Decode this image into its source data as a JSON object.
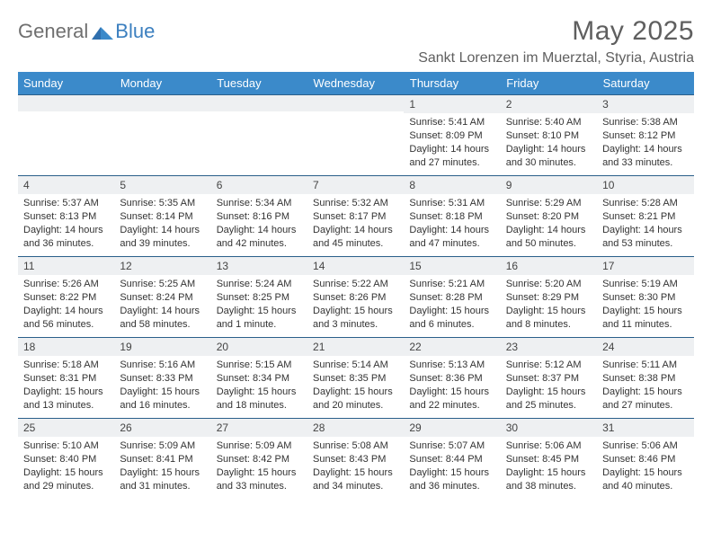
{
  "brand": {
    "part1": "General",
    "part2": "Blue"
  },
  "title": "May 2025",
  "location": "Sankt Lorenzen im Muerztal, Styria, Austria",
  "colors": {
    "header_bg": "#3b8aca",
    "header_text": "#ffffff",
    "band_bg": "#eef0f2",
    "band_border": "#2a5f8a",
    "body_text": "#333333",
    "title_text": "#5f5f5f",
    "logo_gray": "#6f6f6f",
    "logo_blue": "#3b7fbf",
    "page_bg": "#ffffff"
  },
  "typography": {
    "title_fontsize": 30,
    "location_fontsize": 16,
    "header_fontsize": 13,
    "daynum_fontsize": 12,
    "cell_fontsize": 11,
    "logo_fontsize": 22
  },
  "calendar": {
    "columns": [
      "Sunday",
      "Monday",
      "Tuesday",
      "Wednesday",
      "Thursday",
      "Friday",
      "Saturday"
    ],
    "weeks": [
      [
        null,
        null,
        null,
        null,
        {
          "day": "1",
          "sunrise": "Sunrise: 5:41 AM",
          "sunset": "Sunset: 8:09 PM",
          "daylight": "Daylight: 14 hours and 27 minutes."
        },
        {
          "day": "2",
          "sunrise": "Sunrise: 5:40 AM",
          "sunset": "Sunset: 8:10 PM",
          "daylight": "Daylight: 14 hours and 30 minutes."
        },
        {
          "day": "3",
          "sunrise": "Sunrise: 5:38 AM",
          "sunset": "Sunset: 8:12 PM",
          "daylight": "Daylight: 14 hours and 33 minutes."
        }
      ],
      [
        {
          "day": "4",
          "sunrise": "Sunrise: 5:37 AM",
          "sunset": "Sunset: 8:13 PM",
          "daylight": "Daylight: 14 hours and 36 minutes."
        },
        {
          "day": "5",
          "sunrise": "Sunrise: 5:35 AM",
          "sunset": "Sunset: 8:14 PM",
          "daylight": "Daylight: 14 hours and 39 minutes."
        },
        {
          "day": "6",
          "sunrise": "Sunrise: 5:34 AM",
          "sunset": "Sunset: 8:16 PM",
          "daylight": "Daylight: 14 hours and 42 minutes."
        },
        {
          "day": "7",
          "sunrise": "Sunrise: 5:32 AM",
          "sunset": "Sunset: 8:17 PM",
          "daylight": "Daylight: 14 hours and 45 minutes."
        },
        {
          "day": "8",
          "sunrise": "Sunrise: 5:31 AM",
          "sunset": "Sunset: 8:18 PM",
          "daylight": "Daylight: 14 hours and 47 minutes."
        },
        {
          "day": "9",
          "sunrise": "Sunrise: 5:29 AM",
          "sunset": "Sunset: 8:20 PM",
          "daylight": "Daylight: 14 hours and 50 minutes."
        },
        {
          "day": "10",
          "sunrise": "Sunrise: 5:28 AM",
          "sunset": "Sunset: 8:21 PM",
          "daylight": "Daylight: 14 hours and 53 minutes."
        }
      ],
      [
        {
          "day": "11",
          "sunrise": "Sunrise: 5:26 AM",
          "sunset": "Sunset: 8:22 PM",
          "daylight": "Daylight: 14 hours and 56 minutes."
        },
        {
          "day": "12",
          "sunrise": "Sunrise: 5:25 AM",
          "sunset": "Sunset: 8:24 PM",
          "daylight": "Daylight: 14 hours and 58 minutes."
        },
        {
          "day": "13",
          "sunrise": "Sunrise: 5:24 AM",
          "sunset": "Sunset: 8:25 PM",
          "daylight": "Daylight: 15 hours and 1 minute."
        },
        {
          "day": "14",
          "sunrise": "Sunrise: 5:22 AM",
          "sunset": "Sunset: 8:26 PM",
          "daylight": "Daylight: 15 hours and 3 minutes."
        },
        {
          "day": "15",
          "sunrise": "Sunrise: 5:21 AM",
          "sunset": "Sunset: 8:28 PM",
          "daylight": "Daylight: 15 hours and 6 minutes."
        },
        {
          "day": "16",
          "sunrise": "Sunrise: 5:20 AM",
          "sunset": "Sunset: 8:29 PM",
          "daylight": "Daylight: 15 hours and 8 minutes."
        },
        {
          "day": "17",
          "sunrise": "Sunrise: 5:19 AM",
          "sunset": "Sunset: 8:30 PM",
          "daylight": "Daylight: 15 hours and 11 minutes."
        }
      ],
      [
        {
          "day": "18",
          "sunrise": "Sunrise: 5:18 AM",
          "sunset": "Sunset: 8:31 PM",
          "daylight": "Daylight: 15 hours and 13 minutes."
        },
        {
          "day": "19",
          "sunrise": "Sunrise: 5:16 AM",
          "sunset": "Sunset: 8:33 PM",
          "daylight": "Daylight: 15 hours and 16 minutes."
        },
        {
          "day": "20",
          "sunrise": "Sunrise: 5:15 AM",
          "sunset": "Sunset: 8:34 PM",
          "daylight": "Daylight: 15 hours and 18 minutes."
        },
        {
          "day": "21",
          "sunrise": "Sunrise: 5:14 AM",
          "sunset": "Sunset: 8:35 PM",
          "daylight": "Daylight: 15 hours and 20 minutes."
        },
        {
          "day": "22",
          "sunrise": "Sunrise: 5:13 AM",
          "sunset": "Sunset: 8:36 PM",
          "daylight": "Daylight: 15 hours and 22 minutes."
        },
        {
          "day": "23",
          "sunrise": "Sunrise: 5:12 AM",
          "sunset": "Sunset: 8:37 PM",
          "daylight": "Daylight: 15 hours and 25 minutes."
        },
        {
          "day": "24",
          "sunrise": "Sunrise: 5:11 AM",
          "sunset": "Sunset: 8:38 PM",
          "daylight": "Daylight: 15 hours and 27 minutes."
        }
      ],
      [
        {
          "day": "25",
          "sunrise": "Sunrise: 5:10 AM",
          "sunset": "Sunset: 8:40 PM",
          "daylight": "Daylight: 15 hours and 29 minutes."
        },
        {
          "day": "26",
          "sunrise": "Sunrise: 5:09 AM",
          "sunset": "Sunset: 8:41 PM",
          "daylight": "Daylight: 15 hours and 31 minutes."
        },
        {
          "day": "27",
          "sunrise": "Sunrise: 5:09 AM",
          "sunset": "Sunset: 8:42 PM",
          "daylight": "Daylight: 15 hours and 33 minutes."
        },
        {
          "day": "28",
          "sunrise": "Sunrise: 5:08 AM",
          "sunset": "Sunset: 8:43 PM",
          "daylight": "Daylight: 15 hours and 34 minutes."
        },
        {
          "day": "29",
          "sunrise": "Sunrise: 5:07 AM",
          "sunset": "Sunset: 8:44 PM",
          "daylight": "Daylight: 15 hours and 36 minutes."
        },
        {
          "day": "30",
          "sunrise": "Sunrise: 5:06 AM",
          "sunset": "Sunset: 8:45 PM",
          "daylight": "Daylight: 15 hours and 38 minutes."
        },
        {
          "day": "31",
          "sunrise": "Sunrise: 5:06 AM",
          "sunset": "Sunset: 8:46 PM",
          "daylight": "Daylight: 15 hours and 40 minutes."
        }
      ]
    ]
  }
}
